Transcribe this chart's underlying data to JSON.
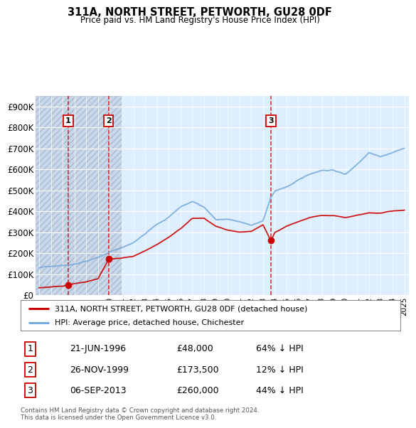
{
  "title": "311A, NORTH STREET, PETWORTH, GU28 0DF",
  "subtitle": "Price paid vs. HM Land Registry's House Price Index (HPI)",
  "ylabel_values": [
    "£0",
    "£100K",
    "£200K",
    "£300K",
    "£400K",
    "£500K",
    "£600K",
    "£700K",
    "£800K",
    "£900K"
  ],
  "ytick_values": [
    0,
    100000,
    200000,
    300000,
    400000,
    500000,
    600000,
    700000,
    800000,
    900000
  ],
  "ylim": [
    0,
    950000
  ],
  "xlim_start": 1993.7,
  "xlim_end": 2025.4,
  "sale_dates": [
    1996.47,
    1999.9,
    2013.68
  ],
  "sale_prices": [
    48000,
    173500,
    260000
  ],
  "sale_labels": [
    "1",
    "2",
    "3"
  ],
  "red_color": "#cc0000",
  "blue_color": "#77aadd",
  "hatch_region_end": 2001.0,
  "legend_entries": [
    "311A, NORTH STREET, PETWORTH, GU28 0DF (detached house)",
    "HPI: Average price, detached house, Chichester"
  ],
  "table_rows": [
    [
      "1",
      "21-JUN-1996",
      "£48,000",
      "64% ↓ HPI"
    ],
    [
      "2",
      "26-NOV-1999",
      "£173,500",
      "12% ↓ HPI"
    ],
    [
      "3",
      "06-SEP-2013",
      "£260,000",
      "44% ↓ HPI"
    ]
  ],
  "footnote": "Contains HM Land Registry data © Crown copyright and database right 2024.\nThis data is licensed under the Open Government Licence v3.0.",
  "background_plot": "#ddeeff",
  "hpi_years": [
    1994,
    1995,
    1996,
    1997,
    1998,
    1999,
    2000,
    2001,
    2002,
    2003,
    2004,
    2005,
    2006,
    2007,
    2008,
    2009,
    2010,
    2011,
    2012,
    2013,
    2013.68,
    2014,
    2015,
    2016,
    2017,
    2018,
    2019,
    2020,
    2021,
    2022,
    2023,
    2024,
    2025
  ],
  "hpi_prices": [
    130000,
    138000,
    145000,
    152000,
    165000,
    185000,
    210000,
    230000,
    255000,
    295000,
    340000,
    370000,
    420000,
    445000,
    420000,
    360000,
    360000,
    345000,
    330000,
    350000,
    460000,
    490000,
    510000,
    540000,
    570000,
    590000,
    590000,
    570000,
    620000,
    680000,
    660000,
    680000,
    700000
  ],
  "pp_years": [
    1994,
    1995,
    1996,
    1996.47,
    1997,
    1998,
    1999,
    1999.9,
    2000,
    2001,
    2002,
    2003,
    2004,
    2005,
    2006,
    2007,
    2008,
    2009,
    2010,
    2011,
    2012,
    2013,
    2013.68,
    2014,
    2015,
    2016,
    2017,
    2018,
    2019,
    2020,
    2021,
    2022,
    2023,
    2024,
    2025
  ],
  "pp_prices": [
    35000,
    38000,
    42000,
    48000,
    55000,
    65000,
    80000,
    173500,
    175000,
    180000,
    190000,
    215000,
    245000,
    280000,
    320000,
    370000,
    370000,
    330000,
    310000,
    300000,
    305000,
    335000,
    260000,
    300000,
    330000,
    350000,
    370000,
    380000,
    380000,
    370000,
    380000,
    390000,
    390000,
    400000,
    405000
  ]
}
